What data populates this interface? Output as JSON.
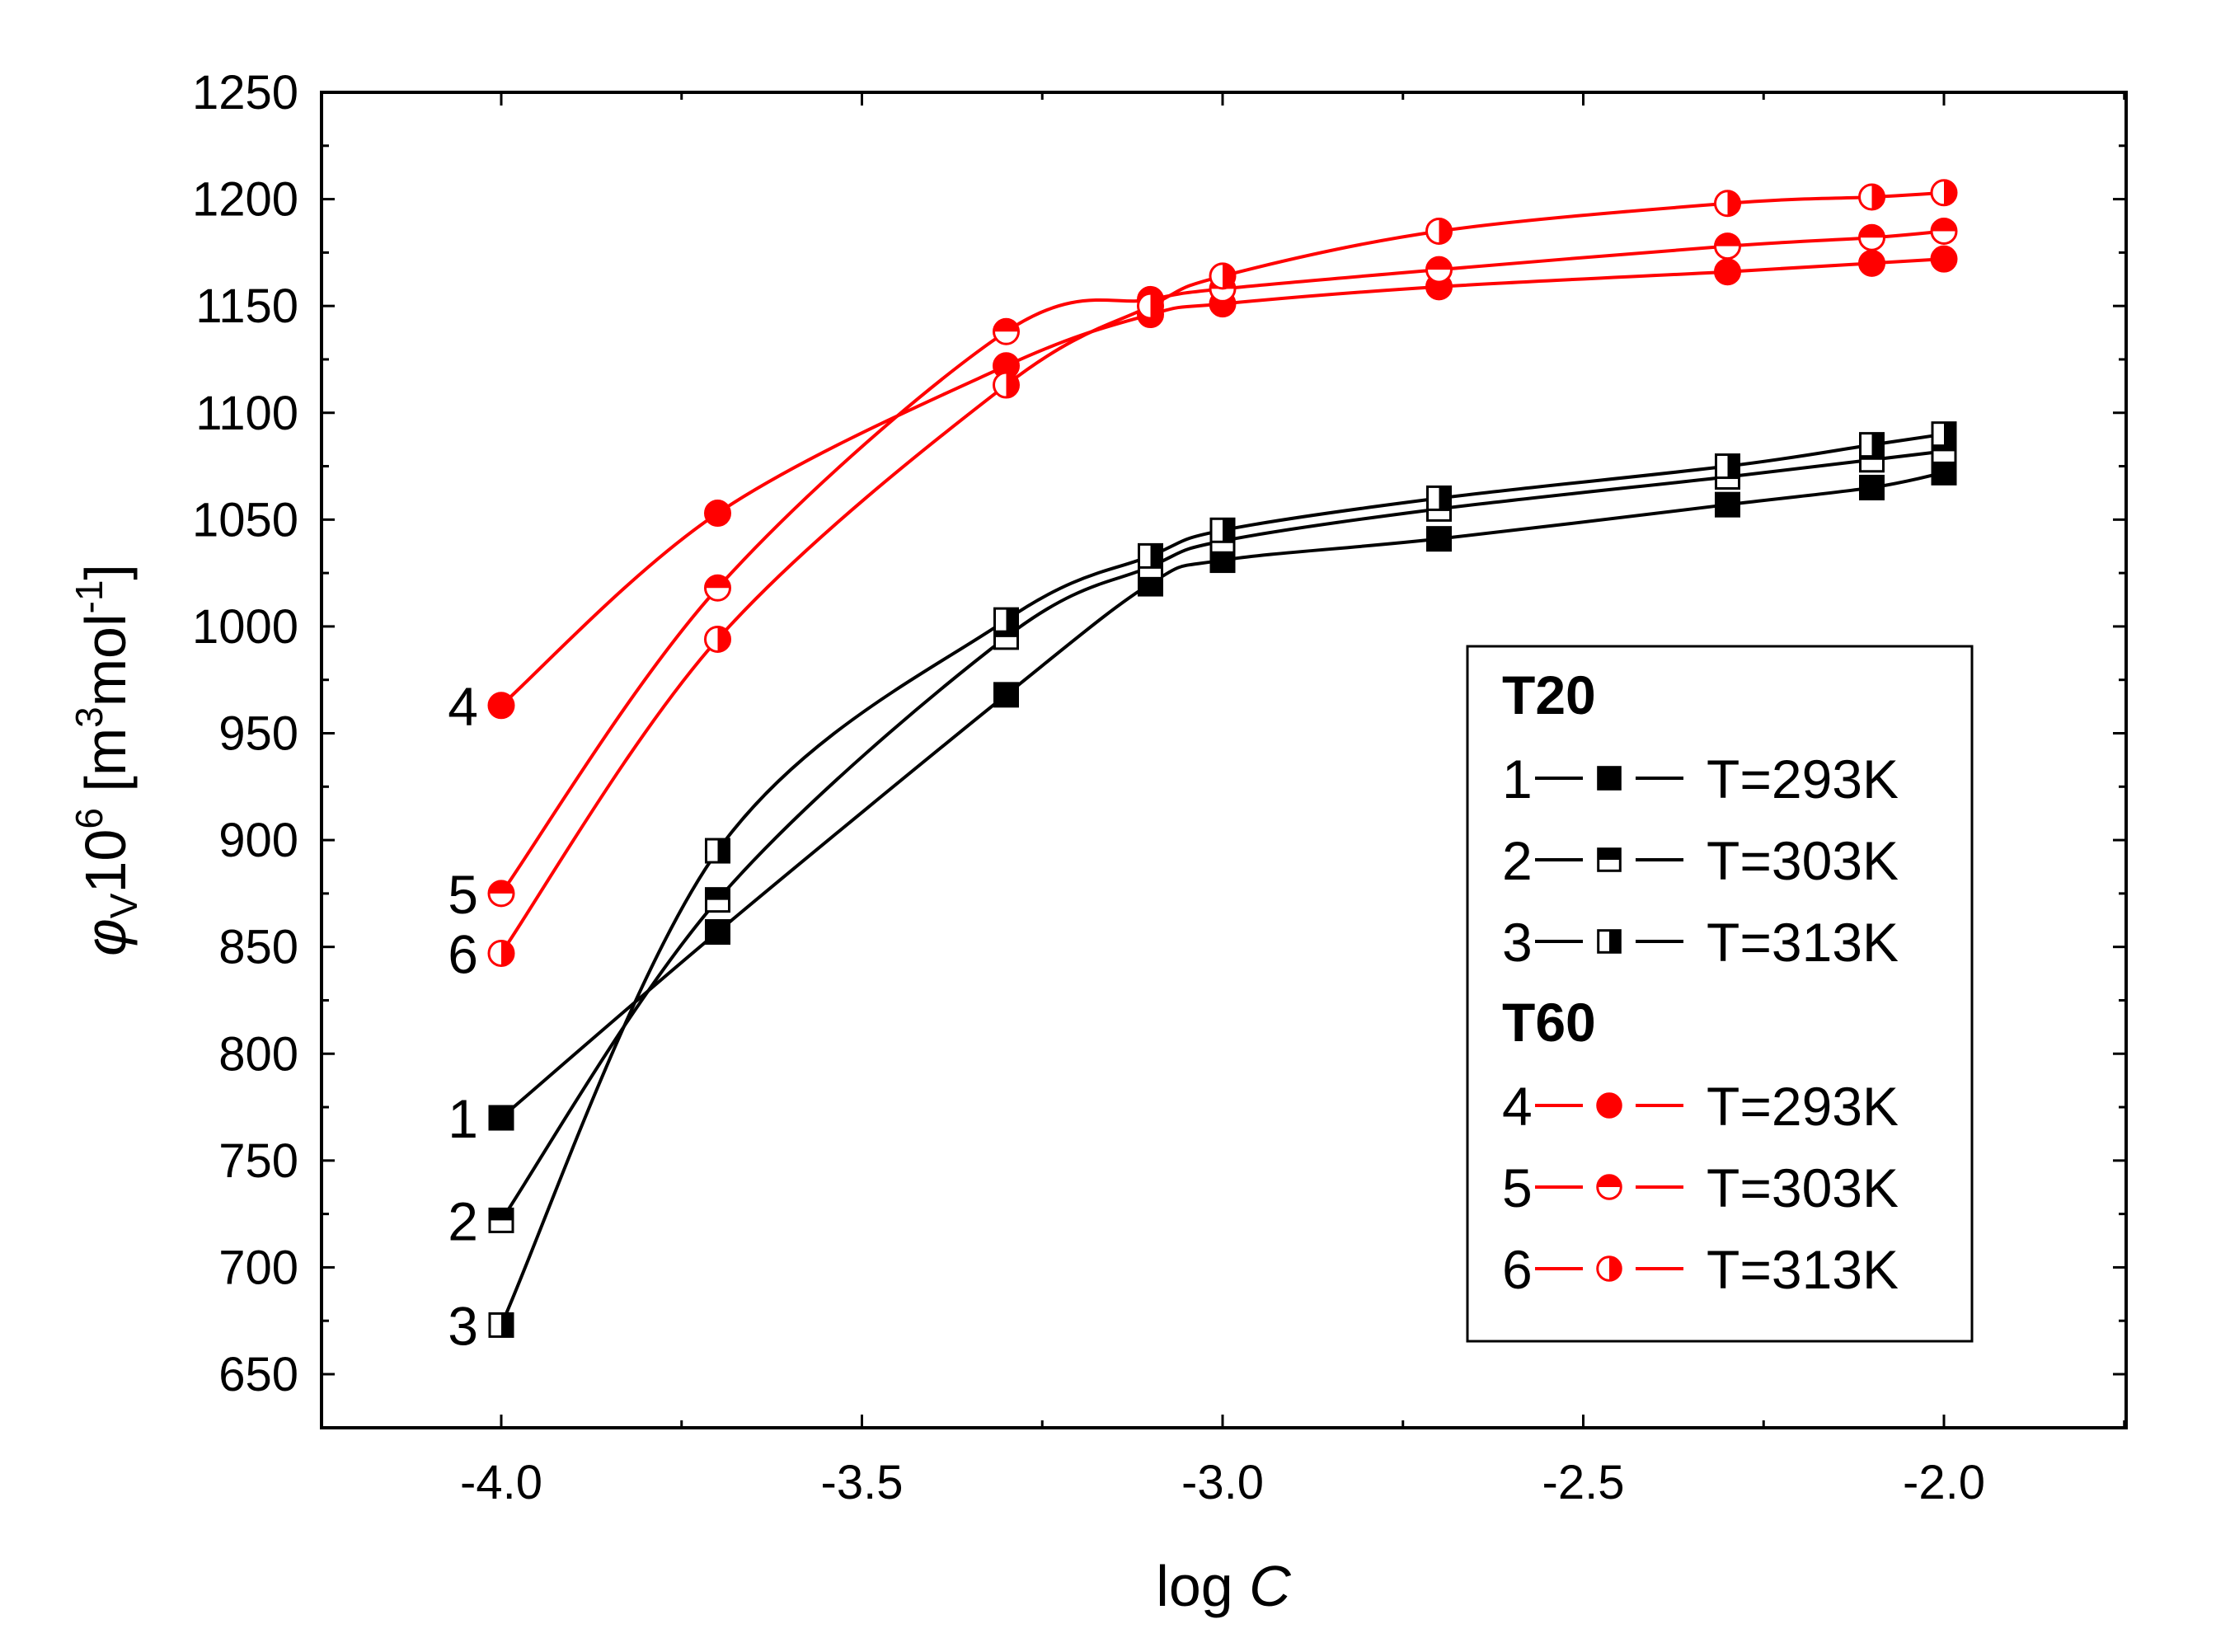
{
  "chart_data": {
    "type": "line",
    "xlabel_prefix": "log ",
    "xlabel_var": "C",
    "ylabel": {
      "phi": "φ",
      "sub": "V",
      "base": "10",
      "exp": "6",
      "unit_open": " [m",
      "unit_exp1": "3",
      "unit_mid": "mol",
      "unit_exp2": "-1",
      "unit_close": "]"
    },
    "xlim": [
      -4.25,
      -1.75
    ],
    "ylim": [
      625,
      1250
    ],
    "xticks": [
      -4.0,
      -3.5,
      -3.0,
      -2.5,
      -2.0
    ],
    "xtick_labels": [
      "-4.0",
      "-3.5",
      "-3.0",
      "-2.5",
      "-2.0"
    ],
    "yticks": [
      650,
      700,
      750,
      800,
      850,
      900,
      950,
      1000,
      1050,
      1100,
      1150,
      1200,
      1250
    ],
    "ytick_labels": [
      "650",
      "700",
      "750",
      "800",
      "850",
      "900",
      "950",
      "1000",
      "1050",
      "1100",
      "1150",
      "1200",
      "1250"
    ],
    "x": [
      -4.0,
      -3.7,
      -3.3,
      -3.1,
      -3.0,
      -2.7,
      -2.3,
      -2.1,
      -2.0
    ],
    "series": [
      {
        "id": "1",
        "group": "T20",
        "name": "T=293K",
        "color": "#000000",
        "marker": "square-filled",
        "values": [
          770,
          857,
          968,
          1020,
          1031,
          1041,
          1057,
          1065,
          1072
        ]
      },
      {
        "id": "2",
        "group": "T20",
        "name": "T=303K",
        "color": "#000000",
        "marker": "square-half-top",
        "values": [
          722,
          872,
          995,
          1028,
          1040,
          1055,
          1070,
          1078,
          1082
        ]
      },
      {
        "id": "3",
        "group": "T20",
        "name": "T=313K",
        "color": "#000000",
        "marker": "square-half-right",
        "values": [
          673,
          895,
          1003,
          1033,
          1045,
          1060,
          1075,
          1085,
          1090
        ]
      },
      {
        "id": "4",
        "group": "T60",
        "name": "T=293K",
        "color": "#ff0000",
        "marker": "circle-filled",
        "values": [
          963,
          1053,
          1122,
          1146,
          1151,
          1159,
          1166,
          1170,
          1172
        ]
      },
      {
        "id": "5",
        "group": "T60",
        "name": "T=303K",
        "color": "#ff0000",
        "marker": "circle-half-top",
        "values": [
          875,
          1018,
          1138,
          1153,
          1158,
          1167,
          1178,
          1182,
          1185
        ]
      },
      {
        "id": "6",
        "group": "T60",
        "name": "T=313K",
        "color": "#ff0000",
        "marker": "circle-half-right",
        "values": [
          847,
          994,
          1113,
          1150,
          1164,
          1185,
          1198,
          1201,
          1203
        ]
      }
    ],
    "curve_labels": [
      "4",
      "5",
      "6",
      "1",
      "2",
      "3"
    ],
    "legend": {
      "placement": "bottom-right",
      "groups": [
        {
          "title": "T20",
          "entries": [
            {
              "num": "1",
              "label": "T=293K",
              "series_id": "1"
            },
            {
              "num": "2",
              "label": "T=303K",
              "series_id": "2"
            },
            {
              "num": "3",
              "label": "T=313K",
              "series_id": "3"
            }
          ]
        },
        {
          "title": "T60",
          "entries": [
            {
              "num": "4",
              "label": "T=293K",
              "series_id": "4"
            },
            {
              "num": "5",
              "label": "T=303K",
              "series_id": "5"
            },
            {
              "num": "6",
              "label": "T=313K",
              "series_id": "6"
            }
          ]
        }
      ]
    },
    "grid": false
  }
}
